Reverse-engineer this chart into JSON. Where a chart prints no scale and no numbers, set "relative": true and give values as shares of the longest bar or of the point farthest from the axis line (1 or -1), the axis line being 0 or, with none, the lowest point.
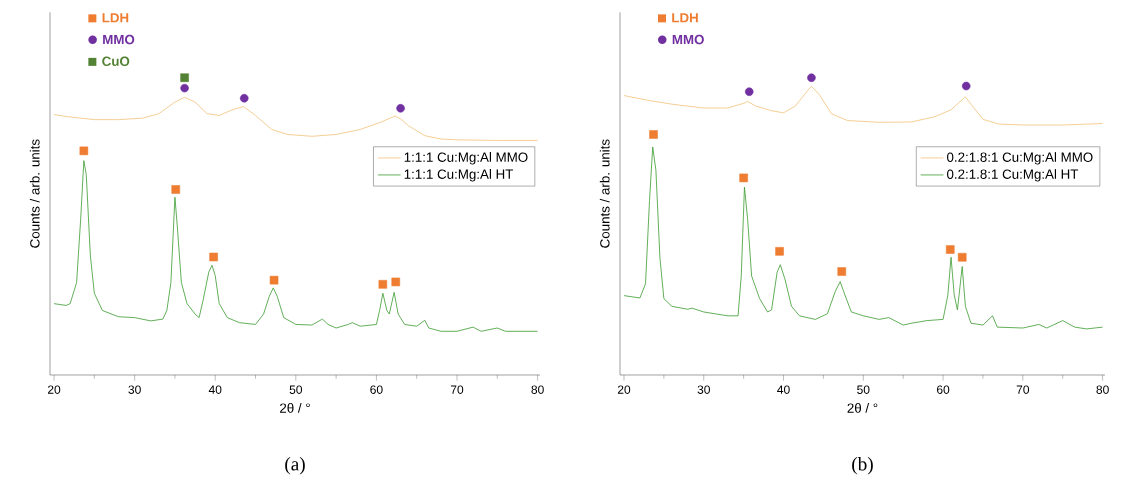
{
  "chart_data": [
    {
      "type": "line",
      "relative": true,
      "xlim": [
        19.5,
        80.3
      ],
      "xticks": [
        20,
        30,
        40,
        50,
        60,
        70,
        80
      ],
      "xlabel": "2θ / °",
      "ylabel": "Counts / arb. units",
      "legend": "right",
      "annotations": [
        "(a)"
      ],
      "series": [
        {
          "name": "1:1:1 Cu:Mg:Al MMO",
          "color": "#f2c27a",
          "marker": "none",
          "x": [
            20,
            22,
            25,
            28,
            31,
            33,
            35,
            36.2,
            37.5,
            39,
            40.5,
            42,
            43.5,
            45,
            47,
            49,
            52,
            55,
            58,
            60.5,
            62.3,
            63,
            64,
            66,
            68,
            70,
            75,
            80
          ],
          "values": [
            0.876,
            0.868,
            0.859,
            0.859,
            0.864,
            0.879,
            0.918,
            0.934,
            0.918,
            0.879,
            0.873,
            0.891,
            0.903,
            0.873,
            0.826,
            0.809,
            0.803,
            0.809,
            0.826,
            0.85,
            0.871,
            0.862,
            0.838,
            0.805,
            0.794,
            0.791,
            0.789,
            0.789
          ]
        },
        {
          "name": "1:1:1 Cu:Mg:Al HT",
          "color": "#3a9a2e",
          "marker": "none",
          "x": [
            20,
            21.5,
            22,
            22.8,
            23.3,
            23.7,
            24.0,
            24.5,
            25,
            26,
            28,
            30,
            32,
            33.5,
            34,
            34.5,
            35.0,
            35.3,
            35.8,
            36.5,
            37.5,
            38,
            38.5,
            39.2,
            39.6,
            40,
            40.5,
            41.5,
            43,
            45,
            46,
            46.7,
            47.2,
            47.7,
            48.5,
            50,
            52,
            53.3,
            54,
            55,
            56.5,
            57,
            58,
            60,
            60.4,
            60.8,
            61.3,
            61.6,
            62.2,
            62.7,
            63.5,
            65,
            66,
            66.5,
            68,
            70,
            72,
            73,
            75,
            76,
            80
          ],
          "values": [
            0.24,
            0.234,
            0.24,
            0.311,
            0.522,
            0.721,
            0.674,
            0.404,
            0.275,
            0.217,
            0.196,
            0.193,
            0.182,
            0.188,
            0.217,
            0.311,
            0.598,
            0.498,
            0.311,
            0.24,
            0.205,
            0.193,
            0.252,
            0.346,
            0.369,
            0.334,
            0.24,
            0.193,
            0.176,
            0.17,
            0.205,
            0.264,
            0.293,
            0.264,
            0.193,
            0.17,
            0.168,
            0.188,
            0.17,
            0.158,
            0.17,
            0.176,
            0.164,
            0.17,
            0.217,
            0.275,
            0.217,
            0.205,
            0.278,
            0.205,
            0.17,
            0.164,
            0.184,
            0.158,
            0.147,
            0.147,
            0.161,
            0.147,
            0.158,
            0.147,
            0.147
          ]
        },
        {
          "type": "scatter",
          "name": "LDH",
          "color": "#ee7d31",
          "marker": "square",
          "x": [
            23.7,
            35.1,
            39.8,
            47.3,
            60.8,
            62.4
          ],
          "values": [
            0.754,
            0.624,
            0.397,
            0.319,
            0.305,
            0.313
          ]
        },
        {
          "type": "scatter",
          "name": "MMO",
          "color": "#7030a0",
          "marker": "circle",
          "x": [
            36.2,
            43.6,
            63.0
          ],
          "values": [
            0.965,
            0.931,
            0.897
          ]
        },
        {
          "type": "scatter",
          "name": "CuO",
          "color": "#548235",
          "marker": "square",
          "x": [
            36.2
          ],
          "values": [
            1.0
          ]
        }
      ]
    },
    {
      "type": "line",
      "relative": true,
      "xlim": [
        19.5,
        80.3
      ],
      "xticks": [
        20,
        30,
        40,
        50,
        60,
        70,
        80
      ],
      "xlabel": "2θ / °",
      "ylabel": "Counts / arb. units",
      "legend": "right",
      "annotations": [
        "(b)"
      ],
      "series": [
        {
          "name": "0.2:1.8:1 Cu:Mg:Al MMO",
          "color": "#f2c27a",
          "marker": "none",
          "x": [
            20,
            23,
            26,
            30,
            33,
            35,
            35.5,
            36.5,
            38.5,
            40,
            41.5,
            43,
            43.5,
            44.5,
            46,
            48,
            52,
            56,
            59,
            61,
            62.8,
            63.5,
            65,
            67,
            70,
            75,
            80
          ],
          "values": [
            0.94,
            0.924,
            0.911,
            0.898,
            0.898,
            0.914,
            0.92,
            0.905,
            0.889,
            0.882,
            0.905,
            0.956,
            0.971,
            0.943,
            0.879,
            0.856,
            0.85,
            0.851,
            0.869,
            0.892,
            0.936,
            0.911,
            0.86,
            0.844,
            0.841,
            0.841,
            0.846
          ]
        },
        {
          "name": "0.2:1.8:1 Cu:Mg:Al HT",
          "color": "#3a9a2e",
          "marker": "none",
          "x": [
            20,
            22,
            22.7,
            23.2,
            23.6,
            24,
            24.5,
            25,
            26,
            28,
            28.5,
            30,
            33,
            34.3,
            34.7,
            35.1,
            35.5,
            36,
            37,
            38,
            38.5,
            39.2,
            39.6,
            40.2,
            41,
            42,
            44,
            45.5,
            46.5,
            47.1,
            47.7,
            48.5,
            50,
            52,
            53.2,
            55,
            56,
            58,
            60,
            60.6,
            61,
            61.4,
            61.8,
            62.4,
            62.8,
            63.5,
            65,
            66.2,
            66.8,
            70,
            72,
            73,
            75,
            76.5,
            78,
            80
          ],
          "values": [
            0.267,
            0.259,
            0.307,
            0.587,
            0.767,
            0.689,
            0.396,
            0.257,
            0.231,
            0.221,
            0.225,
            0.212,
            0.199,
            0.199,
            0.333,
            0.632,
            0.524,
            0.333,
            0.257,
            0.212,
            0.219,
            0.346,
            0.371,
            0.32,
            0.231,
            0.199,
            0.187,
            0.206,
            0.282,
            0.314,
            0.269,
            0.212,
            0.199,
            0.187,
            0.193,
            0.168,
            0.174,
            0.183,
            0.187,
            0.269,
            0.396,
            0.269,
            0.219,
            0.365,
            0.231,
            0.174,
            0.168,
            0.199,
            0.161,
            0.158,
            0.17,
            0.158,
            0.183,
            0.161,
            0.155,
            0.161
          ]
        },
        {
          "type": "scatter",
          "name": "LDH",
          "color": "#ee7d31",
          "marker": "square",
          "x": [
            23.7,
            35.0,
            39.5,
            47.3,
            60.9,
            62.4
          ],
          "values": [
            0.809,
            0.663,
            0.416,
            0.348,
            0.422,
            0.396
          ]
        },
        {
          "type": "scatter",
          "name": "MMO",
          "color": "#7030a0",
          "marker": "circle",
          "x": [
            35.7,
            43.5,
            62.9
          ],
          "values": [
            0.953,
            1.0,
            0.972
          ]
        }
      ]
    }
  ]
}
